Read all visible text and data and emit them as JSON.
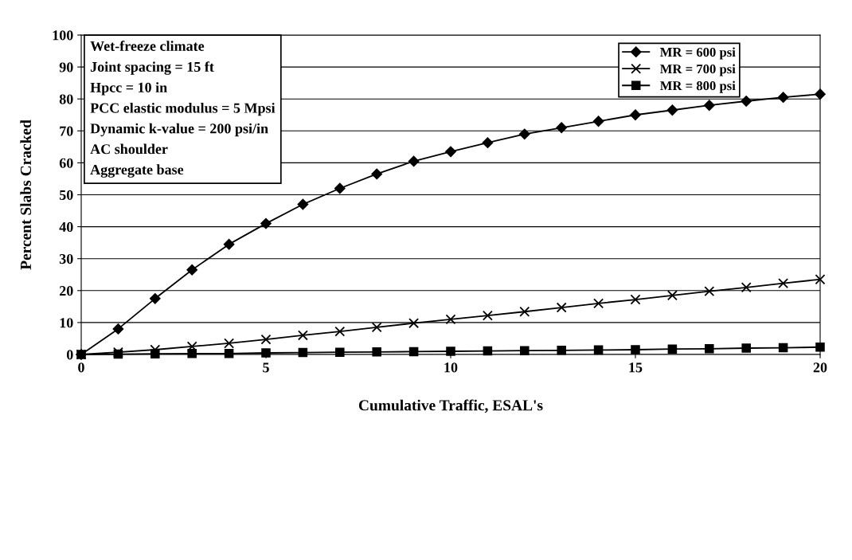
{
  "chart_data": {
    "type": "line",
    "xlabel": "Cumulative Traffic, ESAL's",
    "ylabel": "Percent Slabs Cracked",
    "x": [
      0,
      1,
      2,
      3,
      4,
      5,
      6,
      7,
      8,
      9,
      10,
      11,
      12,
      13,
      14,
      15,
      16,
      17,
      18,
      19,
      20
    ],
    "series": [
      {
        "name": "MR = 600 psi",
        "color": "#000000",
        "marker": "diamond",
        "values": [
          0,
          8,
          17.5,
          26.5,
          34.5,
          41,
          47,
          52,
          56.5,
          60.5,
          63.5,
          66.3,
          69,
          71,
          73,
          75,
          76.5,
          78,
          79.3,
          80.5,
          81.5
        ]
      },
      {
        "name": "MR = 700 psi",
        "color": "#000000",
        "marker": "cross",
        "values": [
          0,
          0.7,
          1.5,
          2.5,
          3.5,
          4.7,
          6,
          7.2,
          8.5,
          9.8,
          11,
          12.2,
          13.4,
          14.7,
          16,
          17.2,
          18.5,
          19.8,
          21,
          22.3,
          23.5
        ]
      },
      {
        "name": "MR = 800 psi",
        "color": "#000000",
        "marker": "square",
        "values": [
          0,
          0.1,
          0.2,
          0.3,
          0.3,
          0.5,
          0.6,
          0.7,
          0.8,
          0.9,
          1.0,
          1.1,
          1.2,
          1.3,
          1.4,
          1.5,
          1.7,
          1.8,
          2.0,
          2.1,
          2.3
        ]
      }
    ],
    "annotations": [
      "Wet-freeze climate",
      "Joint spacing = 15 ft",
      "Hpcc = 10 in",
      "PCC elastic modulus = 5 Mpsi",
      "Dynamic k-value = 200 psi/in",
      "AC shoulder",
      "Aggregate base"
    ],
    "xlim": [
      0,
      20
    ],
    "xticks": [
      0,
      5,
      10,
      15,
      20
    ],
    "ylim": [
      0,
      100
    ],
    "yticks": [
      0,
      10,
      20,
      30,
      40,
      50,
      60,
      70,
      80,
      90,
      100
    ],
    "grid": "y",
    "legend": "top right",
    "line_style": "solid"
  }
}
